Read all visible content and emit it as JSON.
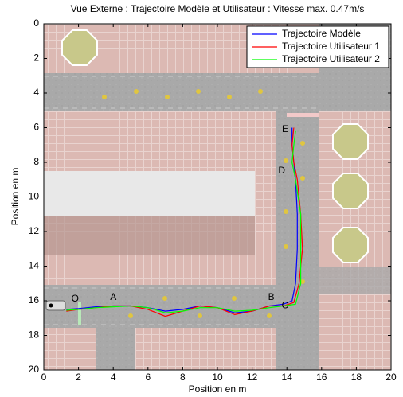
{
  "chart_data": {
    "type": "line",
    "title": "Vue Externe : Trajectoire Modèle et Utilisateur : Vitesse max. 0.47m/s",
    "x_label": "Position en m",
    "y_label": "Position en m",
    "xlim": [
      0,
      20
    ],
    "ylim": [
      20,
      0
    ],
    "xticks": [
      0,
      2,
      4,
      6,
      8,
      10,
      12,
      14,
      16,
      18,
      20
    ],
    "yticks": [
      0,
      2,
      4,
      6,
      8,
      10,
      12,
      14,
      16,
      18,
      20
    ],
    "legend": "upper right",
    "series": [
      {
        "name": "Trajectoire Modèle",
        "color": "#0000ff",
        "x": [
          1.3,
          2,
          3,
          4,
          5,
          6,
          7,
          8,
          9,
          10,
          11,
          12,
          13,
          13.8,
          14.3,
          14.5,
          14.6,
          14.6,
          14.5,
          14.4,
          14.3,
          14.3
        ],
        "values": [
          16.5,
          16.45,
          16.35,
          16.3,
          16.3,
          16.4,
          16.6,
          16.5,
          16.3,
          16.4,
          16.7,
          16.6,
          16.3,
          16.2,
          16.0,
          15,
          13,
          11,
          9,
          8,
          7,
          6
        ]
      },
      {
        "name": "Trajectoire Utilisateur 1",
        "color": "#ff0000",
        "x": [
          1.3,
          2,
          3,
          4,
          5,
          6,
          7,
          8,
          9,
          10,
          11,
          12,
          13,
          13.8,
          14.4,
          14.7,
          14.9,
          14.8,
          14.6,
          14.4,
          14.3,
          14.4
        ],
        "values": [
          16.6,
          16.5,
          16.4,
          16.3,
          16.3,
          16.5,
          16.9,
          16.6,
          16.3,
          16.4,
          16.8,
          16.6,
          16.3,
          16.3,
          16.1,
          15,
          13,
          11,
          9,
          8,
          7,
          6
        ]
      },
      {
        "name": "Trajectoire Utilisateur 2",
        "color": "#00ff00",
        "x": [
          1.3,
          2,
          3,
          4,
          5,
          6,
          7,
          8,
          9,
          10,
          11,
          12,
          13,
          13.8,
          14.5,
          14.8,
          14.8,
          14.8,
          14.5,
          14.3,
          14.4,
          14.5
        ],
        "values": [
          16.55,
          16.5,
          16.4,
          16.35,
          16.3,
          16.4,
          16.7,
          16.6,
          16.4,
          16.4,
          16.6,
          16.55,
          16.4,
          16.3,
          16.2,
          15,
          13,
          11,
          9,
          8,
          7,
          6.2
        ]
      }
    ],
    "annotations": [
      {
        "text": "O",
        "x": 1.8,
        "y": 15.9
      },
      {
        "text": "A",
        "x": 4.0,
        "y": 15.8
      },
      {
        "text": "B",
        "x": 13.1,
        "y": 15.8
      },
      {
        "text": "C",
        "x": 13.9,
        "y": 16.3
      },
      {
        "text": "D",
        "x": 13.7,
        "y": 8.5
      },
      {
        "text": "E",
        "x": 13.9,
        "y": 6.1
      }
    ]
  }
}
